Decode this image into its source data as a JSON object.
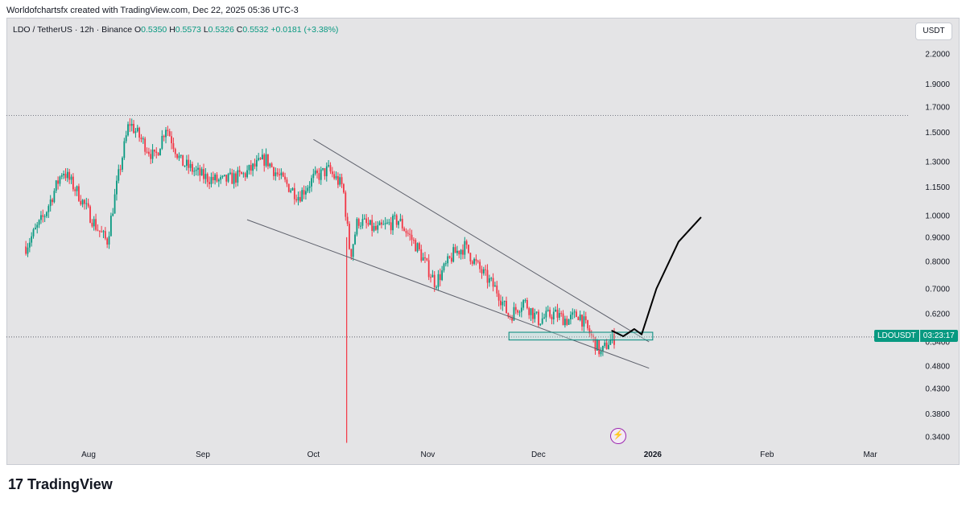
{
  "header": {
    "credit": "Worldofchartsfx created with TradingView.com, Dec 22, 2025 05:36 UTC-3"
  },
  "legend": {
    "symbol": "LDO / TetherUS · 12h · Binance",
    "open_label": "O",
    "open": "0.5350",
    "high_label": "H",
    "high": "0.5573",
    "low_label": "L",
    "low": "0.5326",
    "close_label": "C",
    "close": "0.5532",
    "change": "+0.0181 (+3.38%)"
  },
  "currency_button": "USDT",
  "price_tag": {
    "symbol": "LDOUSDT",
    "countdown": "03:23:17"
  },
  "brand": {
    "logo": "17",
    "name": "TradingView"
  },
  "colors": {
    "up": "#089981",
    "down": "#f23645",
    "background": "#e4e4e6",
    "annotation": "#000000",
    "trendline": "#5d606b",
    "zone_fill": "#b2dfdb",
    "zone_border": "#00897b"
  },
  "icons": {
    "alert": "lightning-icon"
  },
  "chart_data": {
    "type": "candlestick",
    "symbol": "LDO / TetherUS",
    "interval": "12h",
    "scale": "log",
    "y_ticks": [
      "2.2000",
      "1.9000",
      "1.7000",
      "1.5000",
      "1.3000",
      "1.1500",
      "1.0000",
      "0.9000",
      "0.8000",
      "0.7000",
      "0.6200",
      "0.5400",
      "0.4800",
      "0.4300",
      "0.3800",
      "0.3400"
    ],
    "x_ticks": [
      "Aug",
      "Sep",
      "Oct",
      "Nov",
      "Dec",
      "2026",
      "Feb",
      "Mar"
    ],
    "last_price": 0.5532,
    "horizontal_line": 1.63,
    "close_series": [
      {
        "date": "2025-07-15",
        "close": 0.86
      },
      {
        "date": "2025-07-20",
        "close": 1.0
      },
      {
        "date": "2025-07-25",
        "close": 1.25
      },
      {
        "date": "2025-07-29",
        "close": 1.12
      },
      {
        "date": "2025-08-03",
        "close": 0.95
      },
      {
        "date": "2025-08-06",
        "close": 0.88
      },
      {
        "date": "2025-08-09",
        "close": 1.2
      },
      {
        "date": "2025-08-12",
        "close": 1.58
      },
      {
        "date": "2025-08-15",
        "close": 1.46
      },
      {
        "date": "2025-08-19",
        "close": 1.32
      },
      {
        "date": "2025-08-22",
        "close": 1.55
      },
      {
        "date": "2025-08-26",
        "close": 1.3
      },
      {
        "date": "2025-09-01",
        "close": 1.21
      },
      {
        "date": "2025-09-06",
        "close": 1.18
      },
      {
        "date": "2025-09-12",
        "close": 1.22
      },
      {
        "date": "2025-09-18",
        "close": 1.32
      },
      {
        "date": "2025-09-22",
        "close": 1.2
      },
      {
        "date": "2025-09-27",
        "close": 1.1
      },
      {
        "date": "2025-10-01",
        "close": 1.2
      },
      {
        "date": "2025-10-05",
        "close": 1.25
      },
      {
        "date": "2025-10-09",
        "close": 1.15
      },
      {
        "date": "2025-10-11",
        "close": 0.82
      },
      {
        "date": "2025-10-13",
        "close": 0.98
      },
      {
        "date": "2025-10-18",
        "close": 0.93
      },
      {
        "date": "2025-10-24",
        "close": 0.98
      },
      {
        "date": "2025-10-29",
        "close": 0.86
      },
      {
        "date": "2025-11-03",
        "close": 0.72
      },
      {
        "date": "2025-11-08",
        "close": 0.83
      },
      {
        "date": "2025-11-11",
        "close": 0.86
      },
      {
        "date": "2025-11-15",
        "close": 0.77
      },
      {
        "date": "2025-11-20",
        "close": 0.69
      },
      {
        "date": "2025-11-23",
        "close": 0.61
      },
      {
        "date": "2025-11-27",
        "close": 0.66
      },
      {
        "date": "2025-12-01",
        "close": 0.6
      },
      {
        "date": "2025-12-05",
        "close": 0.62
      },
      {
        "date": "2025-12-09",
        "close": 0.6
      },
      {
        "date": "2025-12-12",
        "close": 0.62
      },
      {
        "date": "2025-12-15",
        "close": 0.56
      },
      {
        "date": "2025-12-18",
        "close": 0.51
      },
      {
        "date": "2025-12-20",
        "close": 0.54
      },
      {
        "date": "2025-12-22",
        "close": 0.5532
      }
    ],
    "wick_low": {
      "date": "2025-10-10",
      "low": 0.33
    },
    "trendlines": [
      {
        "name": "upper",
        "from": {
          "date": "2025-10-01",
          "price": 1.45
        },
        "to": {
          "date": "2025-12-31",
          "price": 0.54
        }
      },
      {
        "name": "lower",
        "from": {
          "date": "2025-09-13",
          "price": 0.98
        },
        "to": {
          "date": "2025-12-31",
          "price": 0.475
        }
      }
    ],
    "zone": {
      "from": "2025-11-23",
      "to": "2026-01-01",
      "price_low": 0.545,
      "price_high": 0.566
    },
    "projection": [
      {
        "date": "2025-12-21",
        "price": 0.57
      },
      {
        "date": "2025-12-24",
        "price": 0.555
      },
      {
        "date": "2025-12-27",
        "price": 0.575
      },
      {
        "date": "2025-12-29",
        "price": 0.56
      },
      {
        "date": "2026-01-02",
        "price": 0.7
      },
      {
        "date": "2026-01-08",
        "price": 0.88
      },
      {
        "date": "2026-01-14",
        "price": 0.99
      }
    ]
  }
}
